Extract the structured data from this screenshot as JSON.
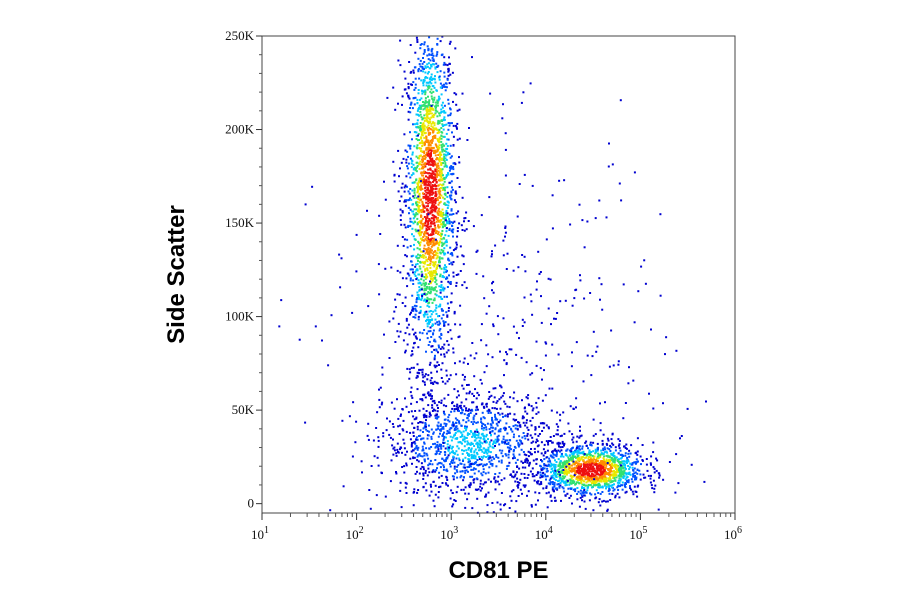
{
  "chart_data": {
    "type": "scatter",
    "title": "",
    "xlabel": "CD81 PE",
    "ylabel": "Side Scatter",
    "x_scale": "log",
    "xlim": [
      10,
      1000000
    ],
    "ylim": [
      -5000,
      250000
    ],
    "x_ticks": [
      {
        "value": 10,
        "base": "10",
        "exp": "1"
      },
      {
        "value": 100,
        "base": "10",
        "exp": "2"
      },
      {
        "value": 1000,
        "base": "10",
        "exp": "3"
      },
      {
        "value": 10000,
        "base": "10",
        "exp": "4"
      },
      {
        "value": 100000,
        "base": "10",
        "exp": "5"
      },
      {
        "value": 1000000,
        "base": "10",
        "exp": "6"
      }
    ],
    "y_ticks": [
      {
        "value": 0,
        "label": "0"
      },
      {
        "value": 50000,
        "label": "50K"
      },
      {
        "value": 100000,
        "label": "100K"
      },
      {
        "value": 150000,
        "label": "150K"
      },
      {
        "value": 200000,
        "label": "200K"
      },
      {
        "value": 250000,
        "label": "250K"
      }
    ],
    "density_colormap": [
      "#0000d0",
      "#0050ff",
      "#00c8ff",
      "#30e070",
      "#e8e800",
      "#ff8c00",
      "#ee1010"
    ],
    "populations": [
      {
        "x_center": 600,
        "x_spread_decades": 0.13,
        "y_center": 165000,
        "y_spread": 45000,
        "weight": 0.42,
        "peak_density": 1.0
      },
      {
        "x_center": 30000,
        "x_spread_decades": 0.28,
        "y_center": 18000,
        "y_spread": 7000,
        "weight": 0.26,
        "peak_density": 1.0
      },
      {
        "x_center": 1600,
        "x_spread_decades": 0.45,
        "y_center": 32000,
        "y_spread": 14000,
        "weight": 0.22,
        "peak_density": 0.35
      },
      {
        "x_center": 3000,
        "x_spread_decades": 0.9,
        "y_center": 70000,
        "y_spread": 60000,
        "weight": 0.1,
        "peak_density": 0.05
      }
    ],
    "grid": false,
    "legend": "none"
  }
}
